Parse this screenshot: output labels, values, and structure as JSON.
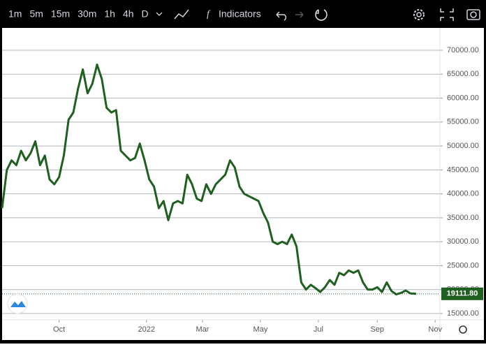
{
  "toolbar": {
    "intervals": [
      "1m",
      "5m",
      "15m",
      "30m",
      "1h",
      "4h",
      "D"
    ],
    "indicators": "Indicators"
  },
  "chart_data": {
    "type": "line",
    "x": [
      0,
      5,
      10,
      15,
      20,
      25,
      30,
      35,
      40,
      45,
      50,
      55,
      60,
      65,
      70,
      75,
      80,
      85,
      90,
      95,
      100,
      105,
      110,
      115,
      120,
      125,
      130,
      135,
      140,
      145,
      150,
      155,
      160,
      165,
      170,
      175,
      180,
      185,
      190,
      195,
      200,
      205,
      210,
      215,
      220,
      225,
      230,
      235,
      240,
      245,
      250,
      255,
      260,
      265,
      270,
      275,
      280,
      285,
      290,
      295,
      300,
      305,
      310,
      315,
      320,
      325,
      330,
      335,
      340,
      345,
      350,
      355,
      360,
      365,
      370,
      375,
      380,
      385,
      390,
      395,
      400,
      405,
      410,
      415,
      420,
      425,
      430,
      436
    ],
    "series": [
      {
        "color": "#1f5f1f",
        "values": [
          37000,
          45000,
          47000,
          46000,
          49000,
          47000,
          48500,
          51000,
          46000,
          48000,
          43000,
          42000,
          43500,
          48000,
          55500,
          57000,
          62000,
          66000,
          61000,
          63000,
          67000,
          64000,
          58000,
          57000,
          57500,
          49000,
          48000,
          47000,
          47500,
          50500,
          47000,
          43000,
          41500,
          37000,
          38500,
          34500,
          38000,
          38500,
          38000,
          44000,
          42000,
          39000,
          38500,
          42000,
          40000,
          42000,
          43000,
          44000,
          47000,
          45500,
          41500,
          40000,
          39500,
          39000,
          38500,
          36000,
          34000,
          30000,
          29500,
          30000,
          29500,
          31500,
          29000,
          21500,
          20000,
          21000,
          20300,
          19500,
          20500,
          22000,
          21000,
          23500,
          23000,
          24000,
          23500,
          24000,
          21500,
          20000,
          20000,
          20500,
          19500,
          21500,
          19700,
          19000,
          19300,
          19800,
          19200,
          19111.8
        ],
        "value_labels": [
          null,
          null,
          null,
          null,
          null,
          null,
          null,
          null,
          null,
          null,
          null,
          null,
          null,
          null,
          null,
          null,
          null,
          null,
          null,
          null,
          null,
          null,
          null,
          null,
          null,
          null,
          null,
          null,
          null,
          null,
          null,
          null,
          null,
          null,
          null,
          null,
          null,
          null,
          null,
          null,
          null,
          null,
          null,
          null,
          null,
          null,
          null,
          null,
          null,
          null,
          null,
          null,
          null,
          null,
          null,
          null,
          null,
          null,
          null,
          null,
          null,
          null,
          null,
          null,
          null,
          null,
          null,
          null,
          null,
          null,
          null,
          null,
          null,
          null,
          null,
          null,
          null,
          null,
          null,
          null,
          null,
          null,
          null,
          null,
          null,
          null,
          null,
          "19111.80"
        ]
      }
    ],
    "xlim": [
      0,
      461
    ],
    "xticks": [
      {
        "value": 60,
        "label": "Oct"
      },
      {
        "value": 152,
        "label": "2022"
      },
      {
        "value": 211,
        "label": "Mar"
      },
      {
        "value": 272,
        "label": "May"
      },
      {
        "value": 333,
        "label": "Jul"
      },
      {
        "value": 395,
        "label": "Sep"
      },
      {
        "value": 456,
        "label": "Nov"
      }
    ],
    "ylim": [
      13690,
      74670
    ],
    "yticks": [
      {
        "value": 15000,
        "label": "15000.00"
      },
      {
        "value": 20000,
        "label": "20000.00"
      },
      {
        "value": 25000,
        "label": "25000.00"
      },
      {
        "value": 30000,
        "label": "30000.00"
      },
      {
        "value": 35000,
        "label": "35000.00"
      },
      {
        "value": 40000,
        "label": "40000.00"
      },
      {
        "value": 45000,
        "label": "45000.00"
      },
      {
        "value": 50000,
        "label": "50000.00"
      },
      {
        "value": 55000,
        "label": "55000.00"
      },
      {
        "value": 60000,
        "label": "60000.00"
      },
      {
        "value": 65000,
        "label": "65000.00"
      },
      {
        "value": 70000,
        "label": "70000.00"
      }
    ],
    "grid": true
  }
}
